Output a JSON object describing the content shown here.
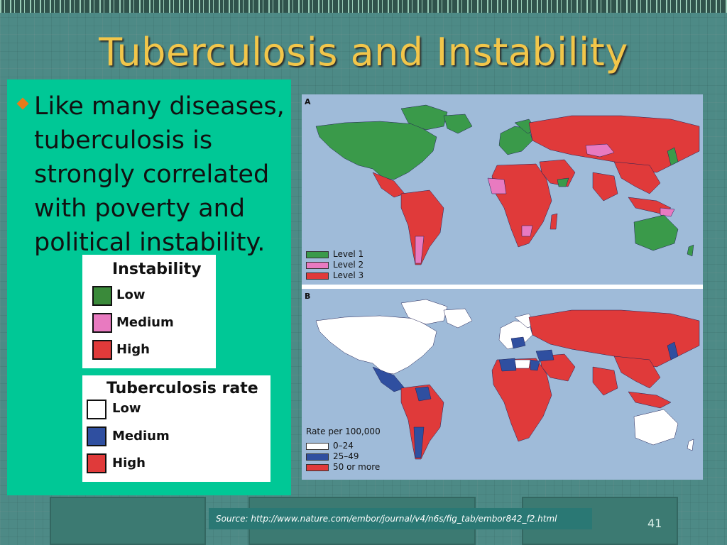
{
  "slide": {
    "title": "Tuberculosis and Instability",
    "bullet": "Like many diseases, tuberculosis is strongly correlated with poverty and political instability.",
    "page_number": "41",
    "source": "Source: http://www.nature.com/embor/journal/v4/n6s/fig_tab/embor842_f2.html"
  },
  "instability_legend": {
    "title": "Instability",
    "items": [
      {
        "label": "Low",
        "color": "#3a8a3a"
      },
      {
        "label": "Medium",
        "color": "#e87ac0"
      },
      {
        "label": "High",
        "color": "#e03a3a"
      }
    ]
  },
  "tb_legend": {
    "title": "Tuberculosis rate",
    "items": [
      {
        "label": "Low",
        "color": "#ffffff"
      },
      {
        "label": "Medium",
        "color": "#2f4fa0"
      },
      {
        "label": "High",
        "color": "#e03a3a"
      }
    ]
  },
  "map_a": {
    "panel_label": "A",
    "legend": [
      {
        "label": "Level 1",
        "color": "#3a9a4a"
      },
      {
        "label": "Level 2",
        "color": "#e87ac0"
      },
      {
        "label": "Level 3",
        "color": "#e03a3a"
      }
    ]
  },
  "map_b": {
    "panel_label": "B",
    "legend_title": "Rate per 100,000",
    "legend": [
      {
        "label": "0–24",
        "color": "#ffffff"
      },
      {
        "label": "25–49",
        "color": "#2f4fa0"
      },
      {
        "label": "50 or more",
        "color": "#e03a3a"
      }
    ]
  },
  "colors": {
    "title": "#f2c64a",
    "panel_bg": "#00c896",
    "ocean": "#9fbbd9"
  }
}
